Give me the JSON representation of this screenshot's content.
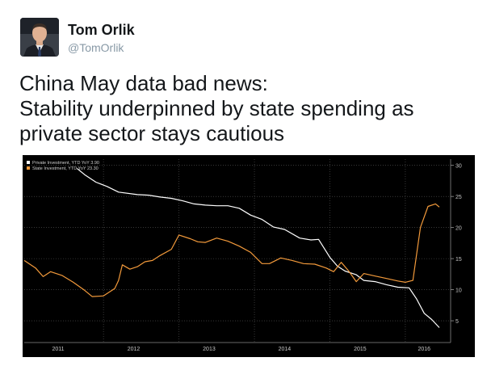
{
  "author": {
    "name": "Tom Orlik",
    "handle": "@TomOrlik"
  },
  "tweet": {
    "lines": [
      "China May data bad news:",
      "Stability underpinned by state spending as",
      "private sector stays cautious"
    ]
  },
  "colors": {
    "private_series": "#ffffff",
    "state_series": "#f39a3b",
    "chart_background": "#000000",
    "grid": "#5a5a5a"
  },
  "chart_data": {
    "type": "line",
    "title": "",
    "xlabel": "",
    "ylabel": "",
    "xlim": [
      2010.8,
      2016.45
    ],
    "ylim": [
      1.5,
      31
    ],
    "y_ticks": [
      "5",
      "10",
      "15",
      "20",
      "25",
      "30"
    ],
    "x_ticks": [
      {
        "label": "2011",
        "value": 2011.25
      },
      {
        "label": "2012",
        "value": 2012.25
      },
      {
        "label": "2013",
        "value": 2013.25
      },
      {
        "label": "2014",
        "value": 2014.25
      },
      {
        "label": "2015",
        "value": 2015.25
      },
      {
        "label": "2016",
        "value": 2016.1
      }
    ],
    "grid": true,
    "legend_position": "top-left",
    "series": [
      {
        "name": "Private Investment, YTD YoY",
        "legend_value": "3.90",
        "color": "#ffffff",
        "x": [
          2011.5,
          2011.6,
          2011.75,
          2011.9,
          2012.05,
          2012.3,
          2012.45,
          2012.6,
          2012.75,
          2012.9,
          2013.05,
          2013.2,
          2013.35,
          2013.5,
          2013.65,
          2013.8,
          2013.95,
          2014.1,
          2014.25,
          2014.45,
          2014.6,
          2014.7,
          2014.85,
          2014.95,
          2015.05,
          2015.2,
          2015.3,
          2015.45,
          2015.6,
          2015.75,
          2015.9,
          2016.0,
          2016.1,
          2016.2,
          2016.3
        ],
        "y": [
          29.5,
          28.5,
          27.3,
          26.6,
          25.7,
          25.3,
          25.2,
          24.9,
          24.7,
          24.3,
          23.8,
          23.6,
          23.5,
          23.5,
          23.1,
          22.0,
          21.3,
          20.1,
          19.7,
          18.3,
          18.0,
          18.1,
          15.2,
          13.8,
          13.0,
          12.4,
          11.5,
          11.3,
          10.8,
          10.4,
          10.3,
          8.5,
          6.2,
          5.2,
          3.9
        ]
      },
      {
        "name": "State Investment, YTD YoY",
        "legend_value": "23.30",
        "color": "#f39a3b",
        "x": [
          2010.8,
          2010.95,
          2011.05,
          2011.15,
          2011.3,
          2011.45,
          2011.6,
          2011.7,
          2011.85,
          2012.0,
          2012.05,
          2012.1,
          2012.2,
          2012.3,
          2012.4,
          2012.5,
          2012.6,
          2012.75,
          2012.85,
          2013.0,
          2013.1,
          2013.2,
          2013.35,
          2013.5,
          2013.65,
          2013.8,
          2013.95,
          2014.05,
          2014.2,
          2014.35,
          2014.5,
          2014.65,
          2014.8,
          2014.9,
          2015.0,
          2015.1,
          2015.2,
          2015.3,
          2015.45,
          2015.6,
          2015.75,
          2015.85,
          2015.95,
          2016.05,
          2016.15,
          2016.25,
          2016.3
        ],
        "y": [
          14.7,
          13.5,
          12.1,
          12.9,
          12.3,
          11.2,
          9.9,
          8.9,
          9.0,
          10.2,
          11.5,
          14.0,
          13.3,
          13.7,
          14.5,
          14.7,
          15.5,
          16.5,
          18.8,
          18.2,
          17.7,
          17.6,
          18.3,
          17.8,
          17.0,
          16.0,
          14.2,
          14.2,
          15.1,
          14.7,
          14.2,
          14.1,
          13.5,
          12.9,
          14.4,
          13.0,
          11.3,
          12.6,
          12.2,
          11.8,
          11.4,
          11.2,
          11.5,
          20.0,
          23.4,
          23.8,
          23.3
        ]
      }
    ]
  }
}
